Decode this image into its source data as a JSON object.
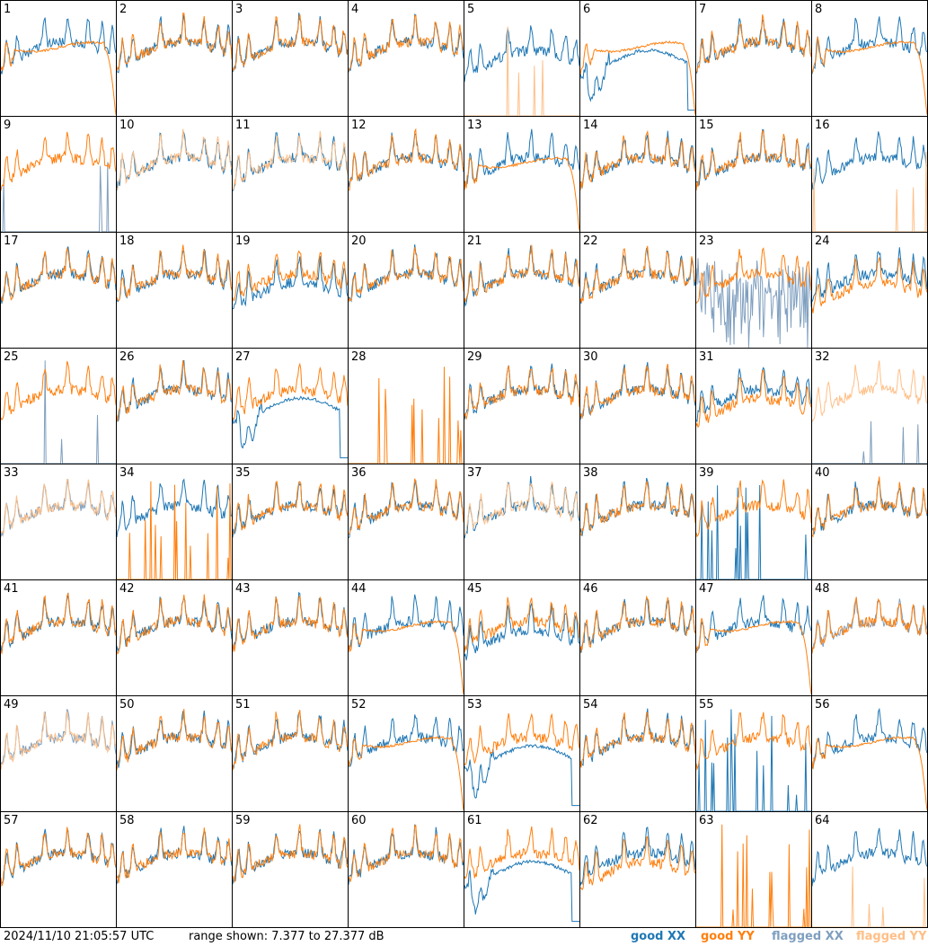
{
  "timestamp": "2024/11/10 21:05:57 UTC",
  "range_label": "range shown: 7.377 to 27.377 dB",
  "legend": {
    "good_xx": "good XX",
    "good_yy": "good YY",
    "flagged_xx": "flagged XX",
    "flagged_yy": "flagged YY"
  },
  "colors": {
    "good_xx": "#1f77b4",
    "good_yy": "#ff7f0e",
    "flagged_xx": "#7f9fbf",
    "flagged_yy": "#ffbf87"
  },
  "chart_data": {
    "type": "line",
    "grid": "8x8 small multiples",
    "ylim_db": [
      7.377,
      27.377
    ],
    "panels": [
      {
        "label": "1",
        "xx": "good",
        "yy": "good-flat"
      },
      {
        "label": "2",
        "xx": "good",
        "yy": "good"
      },
      {
        "label": "3",
        "xx": "good",
        "yy": "good"
      },
      {
        "label": "4",
        "xx": "good",
        "yy": "good"
      },
      {
        "label": "5",
        "xx": "good-low",
        "yy": "flagged-spikes"
      },
      {
        "label": "6",
        "xx": "good-dip",
        "yy": "good-flat"
      },
      {
        "label": "7",
        "xx": "good",
        "yy": "good"
      },
      {
        "label": "8",
        "xx": "good",
        "yy": "good-flat"
      },
      {
        "label": "9",
        "xx": "flagged-spikes",
        "yy": "good"
      },
      {
        "label": "10",
        "xx": "good",
        "yy": "flagged"
      },
      {
        "label": "11",
        "xx": "good",
        "yy": "flagged"
      },
      {
        "label": "12",
        "xx": "good",
        "yy": "good"
      },
      {
        "label": "13",
        "xx": "good",
        "yy": "good-flat"
      },
      {
        "label": "14",
        "xx": "good",
        "yy": "good"
      },
      {
        "label": "15",
        "xx": "good",
        "yy": "good"
      },
      {
        "label": "16",
        "xx": "good",
        "yy": "flagged-spikes"
      },
      {
        "label": "17",
        "xx": "good",
        "yy": "good"
      },
      {
        "label": "18",
        "xx": "good",
        "yy": "good"
      },
      {
        "label": "19",
        "xx": "good-low",
        "yy": "good"
      },
      {
        "label": "20",
        "xx": "good",
        "yy": "good"
      },
      {
        "label": "21",
        "xx": "good",
        "yy": "good"
      },
      {
        "label": "22",
        "xx": "good",
        "yy": "good"
      },
      {
        "label": "23",
        "xx": "flagged-noise",
        "yy": "good"
      },
      {
        "label": "24",
        "xx": "good",
        "yy": "good-low"
      },
      {
        "label": "25",
        "xx": "flagged-spikes",
        "yy": "good"
      },
      {
        "label": "26",
        "xx": "good",
        "yy": "good"
      },
      {
        "label": "27",
        "xx": "good-dip",
        "yy": "good"
      },
      {
        "label": "28",
        "xx": "none",
        "yy": "good-spikes"
      },
      {
        "label": "29",
        "xx": "good",
        "yy": "good"
      },
      {
        "label": "30",
        "xx": "good",
        "yy": "good"
      },
      {
        "label": "31",
        "xx": "good",
        "yy": "good-low"
      },
      {
        "label": "32",
        "xx": "flagged-spikes",
        "yy": "flagged"
      },
      {
        "label": "33",
        "xx": "flagged",
        "yy": "flagged"
      },
      {
        "label": "34",
        "xx": "good",
        "yy": "good-spikes"
      },
      {
        "label": "35",
        "xx": "good",
        "yy": "good"
      },
      {
        "label": "36",
        "xx": "good",
        "yy": "good"
      },
      {
        "label": "37",
        "xx": "good",
        "yy": "flagged"
      },
      {
        "label": "38",
        "xx": "good",
        "yy": "good"
      },
      {
        "label": "39",
        "xx": "good-spikes",
        "yy": "good"
      },
      {
        "label": "40",
        "xx": "good",
        "yy": "good"
      },
      {
        "label": "41",
        "xx": "good",
        "yy": "good"
      },
      {
        "label": "42",
        "xx": "good",
        "yy": "good"
      },
      {
        "label": "43",
        "xx": "good",
        "yy": "good"
      },
      {
        "label": "44",
        "xx": "good",
        "yy": "good-flat"
      },
      {
        "label": "45",
        "xx": "good-low",
        "yy": "good"
      },
      {
        "label": "46",
        "xx": "good",
        "yy": "good"
      },
      {
        "label": "47",
        "xx": "good",
        "yy": "good-flat"
      },
      {
        "label": "48",
        "xx": "flagged",
        "yy": "good"
      },
      {
        "label": "49",
        "xx": "flagged",
        "yy": "flagged"
      },
      {
        "label": "50",
        "xx": "good",
        "yy": "good"
      },
      {
        "label": "51",
        "xx": "good",
        "yy": "good"
      },
      {
        "label": "52",
        "xx": "good",
        "yy": "good-flat"
      },
      {
        "label": "53",
        "xx": "good-dip",
        "yy": "good"
      },
      {
        "label": "54",
        "xx": "good",
        "yy": "good"
      },
      {
        "label": "55",
        "xx": "good-spikes",
        "yy": "good"
      },
      {
        "label": "56",
        "xx": "good",
        "yy": "good-flat"
      },
      {
        "label": "57",
        "xx": "good",
        "yy": "good"
      },
      {
        "label": "58",
        "xx": "good",
        "yy": "good"
      },
      {
        "label": "59",
        "xx": "good",
        "yy": "good"
      },
      {
        "label": "60",
        "xx": "good",
        "yy": "good"
      },
      {
        "label": "61",
        "xx": "good-dip",
        "yy": "good"
      },
      {
        "label": "62",
        "xx": "good",
        "yy": "good-low"
      },
      {
        "label": "63",
        "xx": "none",
        "yy": "good-spikes"
      },
      {
        "label": "64",
        "xx": "good",
        "yy": "flagged-spikes"
      }
    ]
  }
}
